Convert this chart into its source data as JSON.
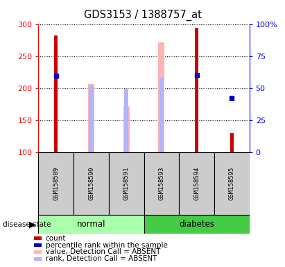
{
  "title": "GDS3153 / 1388757_at",
  "samples": [
    "GSM158589",
    "GSM158590",
    "GSM158591",
    "GSM158593",
    "GSM158594",
    "GSM158595"
  ],
  "groups": [
    "normal",
    "normal",
    "normal",
    "diabetes",
    "diabetes",
    "diabetes"
  ],
  "ylim_left": [
    100,
    300
  ],
  "ylim_right": [
    0,
    100
  ],
  "yticks_left": [
    100,
    150,
    200,
    250,
    300
  ],
  "yticks_right": [
    0,
    25,
    50,
    75,
    100
  ],
  "ytick_right_labels": [
    "0",
    "25",
    "50",
    "75",
    "100%"
  ],
  "count_values": [
    282,
    null,
    null,
    null,
    294,
    130
  ],
  "count_color": "#cc0000",
  "percentile_values": [
    219,
    null,
    null,
    null,
    220,
    185
  ],
  "percentile_color": "#0000cc",
  "value_absent": [
    null,
    206,
    171,
    271,
    null,
    null
  ],
  "value_absent_color": "#ffb3b3",
  "rank_absent": [
    null,
    204,
    199,
    216,
    null,
    null
  ],
  "rank_absent_color": "#b3b3ff",
  "count_bar_width": 0.1,
  "absent_bar_width": 0.18,
  "rank_bar_width": 0.12,
  "legend_items": [
    {
      "color": "#cc0000",
      "label": "count"
    },
    {
      "color": "#0000cc",
      "label": "percentile rank within the sample"
    },
    {
      "color": "#ffb3b3",
      "label": "value, Detection Call = ABSENT"
    },
    {
      "color": "#b3b3ff",
      "label": "rank, Detection Call = ABSENT"
    }
  ],
  "normal_color": "#aaffaa",
  "diabetes_color": "#44cc44",
  "sample_bg_color": "#cccccc"
}
